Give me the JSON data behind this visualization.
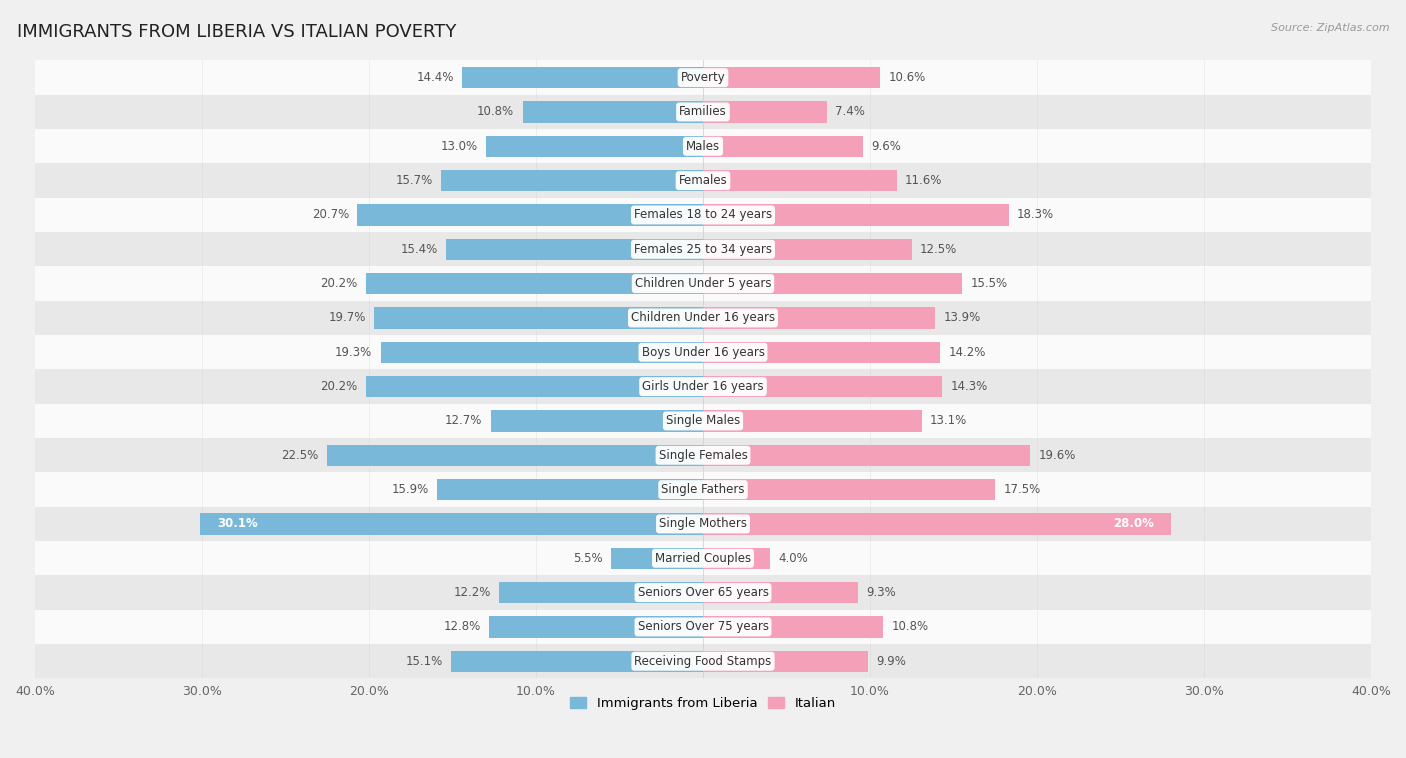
{
  "title": "IMMIGRANTS FROM LIBERIA VS ITALIAN POVERTY",
  "source": "Source: ZipAtlas.com",
  "categories": [
    "Poverty",
    "Families",
    "Males",
    "Females",
    "Females 18 to 24 years",
    "Females 25 to 34 years",
    "Children Under 5 years",
    "Children Under 16 years",
    "Boys Under 16 years",
    "Girls Under 16 years",
    "Single Males",
    "Single Females",
    "Single Fathers",
    "Single Mothers",
    "Married Couples",
    "Seniors Over 65 years",
    "Seniors Over 75 years",
    "Receiving Food Stamps"
  ],
  "liberia_values": [
    14.4,
    10.8,
    13.0,
    15.7,
    20.7,
    15.4,
    20.2,
    19.7,
    19.3,
    20.2,
    12.7,
    22.5,
    15.9,
    30.1,
    5.5,
    12.2,
    12.8,
    15.1
  ],
  "italian_values": [
    10.6,
    7.4,
    9.6,
    11.6,
    18.3,
    12.5,
    15.5,
    13.9,
    14.2,
    14.3,
    13.1,
    19.6,
    17.5,
    28.0,
    4.0,
    9.3,
    10.8,
    9.9
  ],
  "liberia_color": "#7ab8d9",
  "italian_color": "#f4a0b8",
  "liberia_label": "Immigrants from Liberia",
  "italian_label": "Italian",
  "background_color": "#f0f0f0",
  "row_color_light": "#fafafa",
  "row_color_dark": "#e8e8e8",
  "xlim": 40.0,
  "bar_height": 0.62,
  "title_fontsize": 13,
  "label_fontsize": 8.5,
  "value_fontsize": 8.5,
  "axis_label_fontsize": 9
}
